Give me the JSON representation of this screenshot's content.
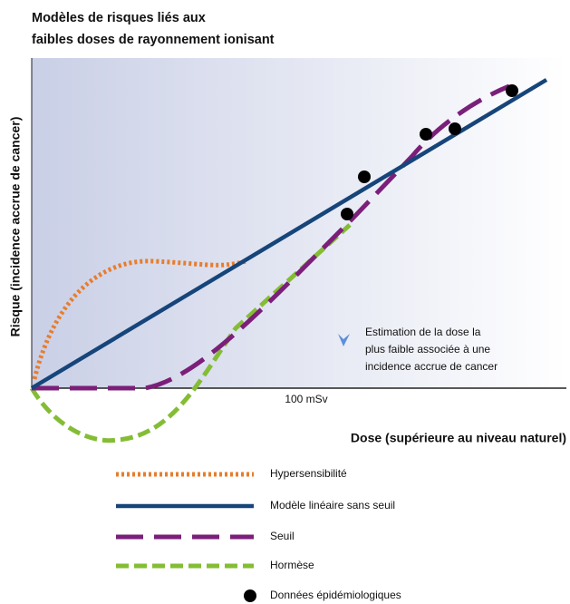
{
  "title": [
    "Modèles de risques liés aux",
    "faibles doses de rayonnement ionisant"
  ],
  "y_axis_label": "Risque (incidence accrue de cancer)",
  "x_tick_label": "100 mSv",
  "x_axis_label": "Dose (supérieure au niveau naturel)",
  "annotation": [
    "Estimation de la dose la",
    "plus faible associée à une",
    "incidence accrue de cancer"
  ],
  "legend": [
    "Hypersensibilité",
    "Modèle linéaire sans seuil",
    "Seuil",
    "Hormèse",
    "Données épidémiologiques"
  ]
}
